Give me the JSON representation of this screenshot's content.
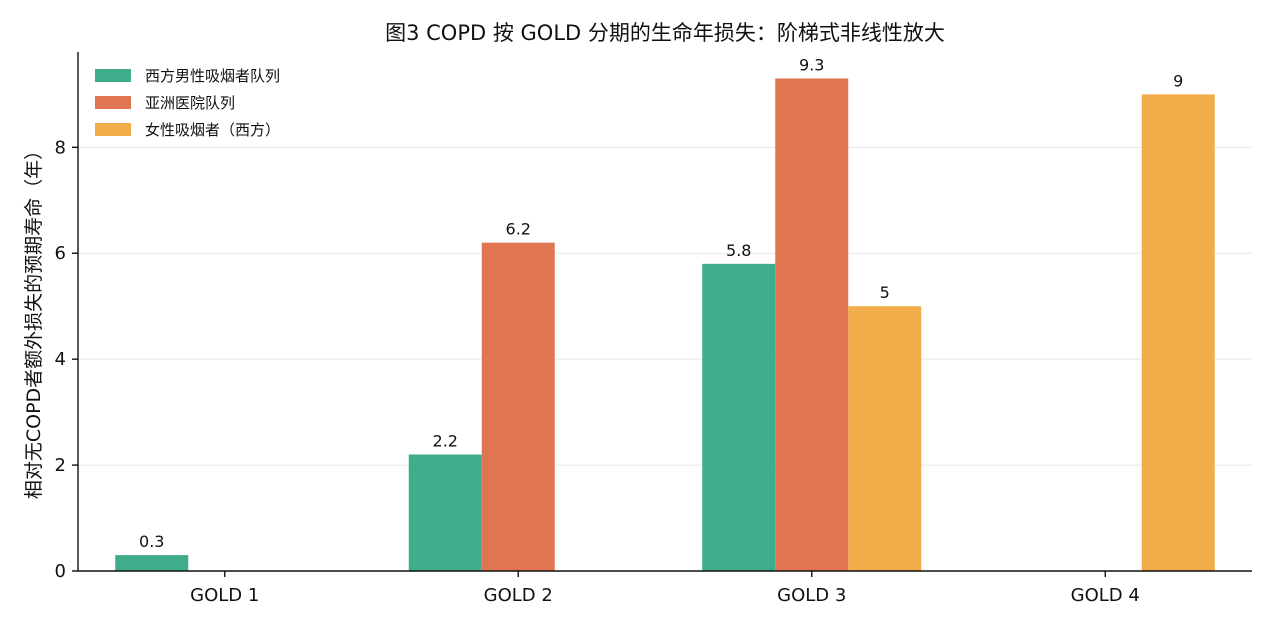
{
  "chart_data": {
    "type": "bar",
    "title": "图3  COPD 按 GOLD 分期的生命年损失：阶梯式非线性放大",
    "xlabel": "",
    "ylabel": "相对无COPD者额外损失的预期寿命（年）",
    "categories": [
      "GOLD 1",
      "GOLD 2",
      "GOLD 3",
      "GOLD 4"
    ],
    "series": [
      {
        "name": "西方男性吸烟者队列",
        "color": "#3fac8b",
        "values": [
          0.3,
          2.2,
          5.8,
          null
        ]
      },
      {
        "name": "亚洲医院队列",
        "color": "#df7551",
        "values": [
          null,
          6.2,
          9.3,
          null
        ]
      },
      {
        "name": "女性吸烟者（西方）",
        "color": "#f0ad4a",
        "values": [
          null,
          null,
          5,
          9
        ]
      }
    ],
    "data_labels": [
      [
        "0.3",
        "2.2",
        "5.8",
        ""
      ],
      [
        "",
        "6.2",
        "9.3",
        ""
      ],
      [
        "",
        "",
        "5",
        "9"
      ]
    ],
    "ylim": [
      0,
      9.8
    ],
    "yticks": [
      0,
      2,
      4,
      6,
      8
    ],
    "ytick_labels": [
      "0",
      "2",
      "4",
      "6",
      "8"
    ],
    "grid": true,
    "legend_position": "top-left"
  }
}
